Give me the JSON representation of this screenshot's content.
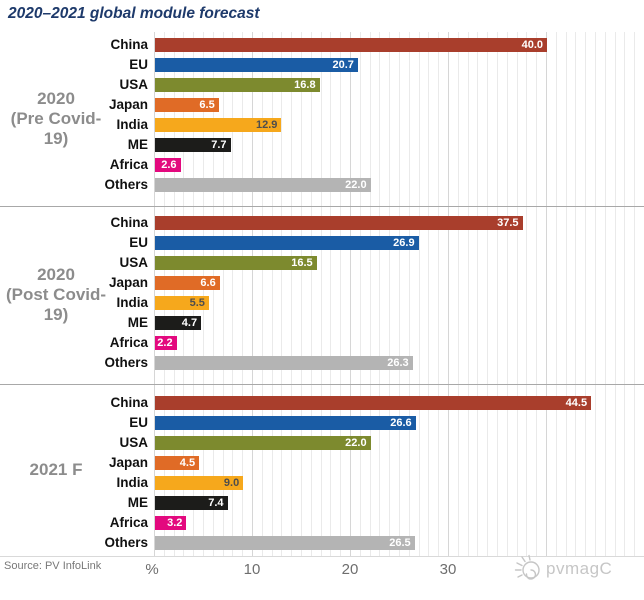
{
  "footer": {
    "source": "Source: PV InfoLink",
    "watermark": "pvmagC"
  },
  "chart_data": {
    "type": "bar",
    "orientation": "horizontal",
    "title": "2020–2021 global module forecast",
    "xlabel": "%",
    "ylabel": "",
    "xlim": [
      0,
      49
    ],
    "xticks": [
      10,
      20,
      30
    ],
    "grid": true,
    "legend_position": "none",
    "categories": [
      "China",
      "EU",
      "USA",
      "Japan",
      "India",
      "ME",
      "Africa",
      "Others"
    ],
    "colors": {
      "China": "#a93e2c",
      "EU": "#1a5ca5",
      "USA": "#7d8a2e",
      "Japan": "#e06b26",
      "India": "#f6a81c",
      "ME": "#1c1c1a",
      "Africa": "#e3097e",
      "Others": "#b4b4b4"
    },
    "value_label_default_color": "#ffffff",
    "value_text_colors": {
      "India": "#4d4d4d"
    },
    "accent_colors": {
      "title": "#1e3a6b",
      "gridline": "#eaeaea",
      "gridline_major": "#d6d6d6",
      "panel_divider": "#a8a8a8",
      "group_label": "#8c8c8c",
      "tick_label": "#6e6e6e"
    },
    "series": [
      {
        "name": "2020 (Pre Covid-19)",
        "name_lines": [
          "2020",
          "(Pre Covid-19)"
        ],
        "values": [
          40.0,
          20.7,
          16.8,
          6.5,
          12.9,
          7.7,
          2.6,
          22.0
        ]
      },
      {
        "name": "2020 (Post Covid-19)",
        "name_lines": [
          "2020",
          "(Post Covid-19)"
        ],
        "values": [
          37.5,
          26.9,
          16.5,
          6.6,
          5.5,
          4.7,
          2.2,
          26.3
        ]
      },
      {
        "name": "2021 F",
        "name_lines": [
          "2021 F"
        ],
        "values": [
          44.5,
          26.6,
          22.0,
          4.5,
          9.0,
          7.4,
          3.2,
          26.5
        ]
      }
    ],
    "source": "Source: PV InfoLink",
    "watermark": "pvmagC"
  }
}
